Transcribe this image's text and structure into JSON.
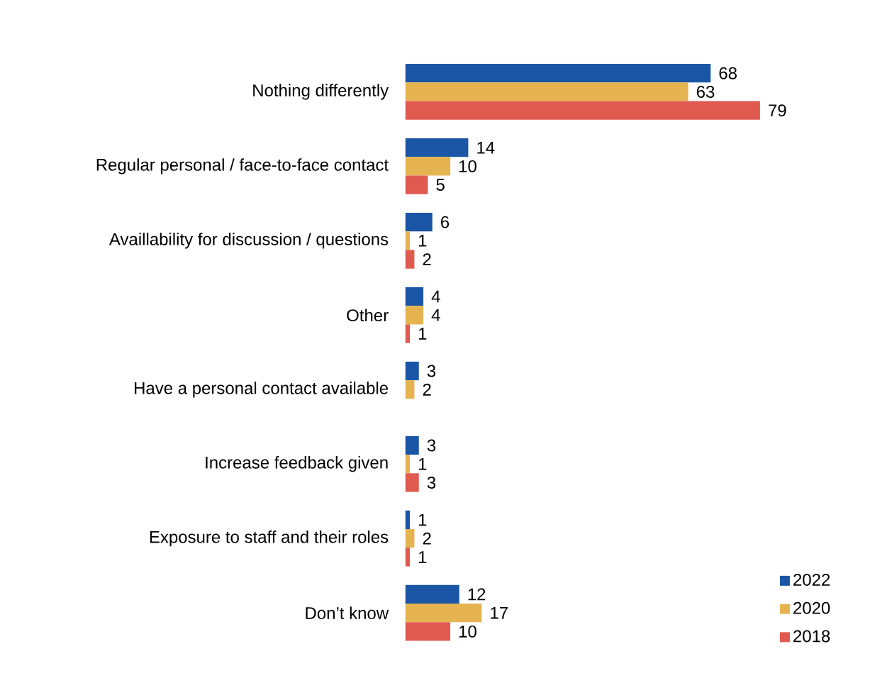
{
  "chart_data": {
    "type": "bar",
    "orientation": "horizontal",
    "categories": [
      "Nothing differently",
      "Regular personal / face-to-face contact",
      "Availlability for discussion / questions",
      "Other",
      "Have a personal contact available",
      "Increase feedback given",
      "Exposure to staff and their roles",
      "Don’t know"
    ],
    "series": [
      {
        "name": "2022",
        "color": "#1a56a5",
        "values": [
          68,
          14,
          6,
          4,
          3,
          3,
          1,
          12
        ]
      },
      {
        "name": "2020",
        "color": "#e5b450",
        "values": [
          63,
          10,
          1,
          4,
          2,
          1,
          2,
          17
        ]
      },
      {
        "name": "2018",
        "color": "#e05a50",
        "values": [
          79,
          5,
          2,
          1,
          null,
          3,
          1,
          10
        ]
      }
    ],
    "data_labels": true,
    "legend": "bottom right"
  }
}
